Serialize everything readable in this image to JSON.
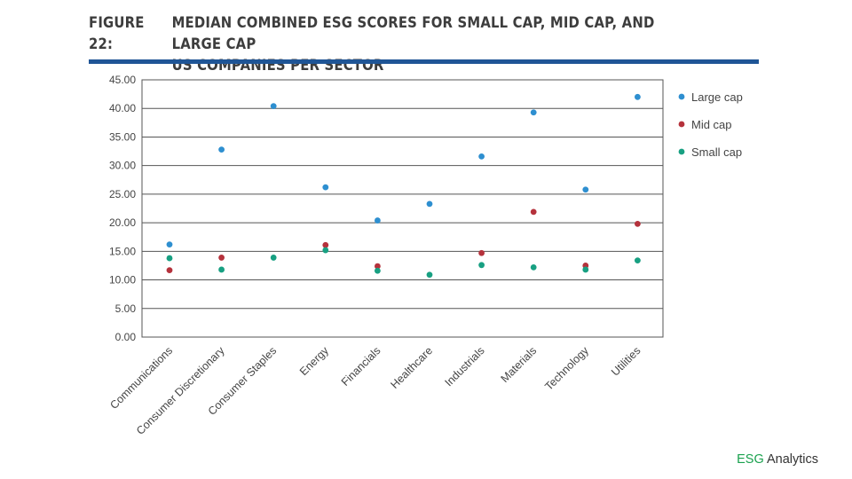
{
  "figure": {
    "number": "FIGURE 22:",
    "title_line1": "MEDIAN COMBINED ESG SCORES FOR SMALL CAP, MID CAP, AND LARGE CAP",
    "title_line2": "US COMPANIES PER SECTOR"
  },
  "brand": {
    "accent": "ESG",
    "rest": " Analytics"
  },
  "colors": {
    "large_cap": "#2e8fd0",
    "mid_cap": "#b5323c",
    "small_cap": "#18a082",
    "title_rule": "#1f5596"
  },
  "chart_data": {
    "type": "scatter",
    "categories": [
      "Communications",
      "Consumer Discretionary",
      "Consumer Staples",
      "Energy",
      "Financials",
      "Healthcare",
      "Industrials",
      "Materials",
      "Technology",
      "Utilities"
    ],
    "series": [
      {
        "name": "Large cap",
        "values": [
          16.2,
          32.8,
          40.4,
          26.2,
          20.4,
          23.3,
          31.6,
          39.3,
          25.8,
          42.0
        ]
      },
      {
        "name": "Mid cap",
        "values": [
          11.7,
          13.9,
          null,
          16.1,
          12.4,
          null,
          14.7,
          21.9,
          12.5,
          19.8
        ]
      },
      {
        "name": "Small cap",
        "values": [
          13.8,
          11.8,
          13.9,
          15.2,
          11.6,
          10.9,
          12.6,
          12.2,
          11.8,
          13.4
        ]
      }
    ],
    "y_ticks": [
      "0.00",
      "5.00",
      "10.00",
      "15.00",
      "20.00",
      "25.00",
      "30.00",
      "35.00",
      "40.00",
      "45.00"
    ],
    "ylim": [
      0,
      45
    ],
    "grid": true,
    "legend_position": "right"
  }
}
